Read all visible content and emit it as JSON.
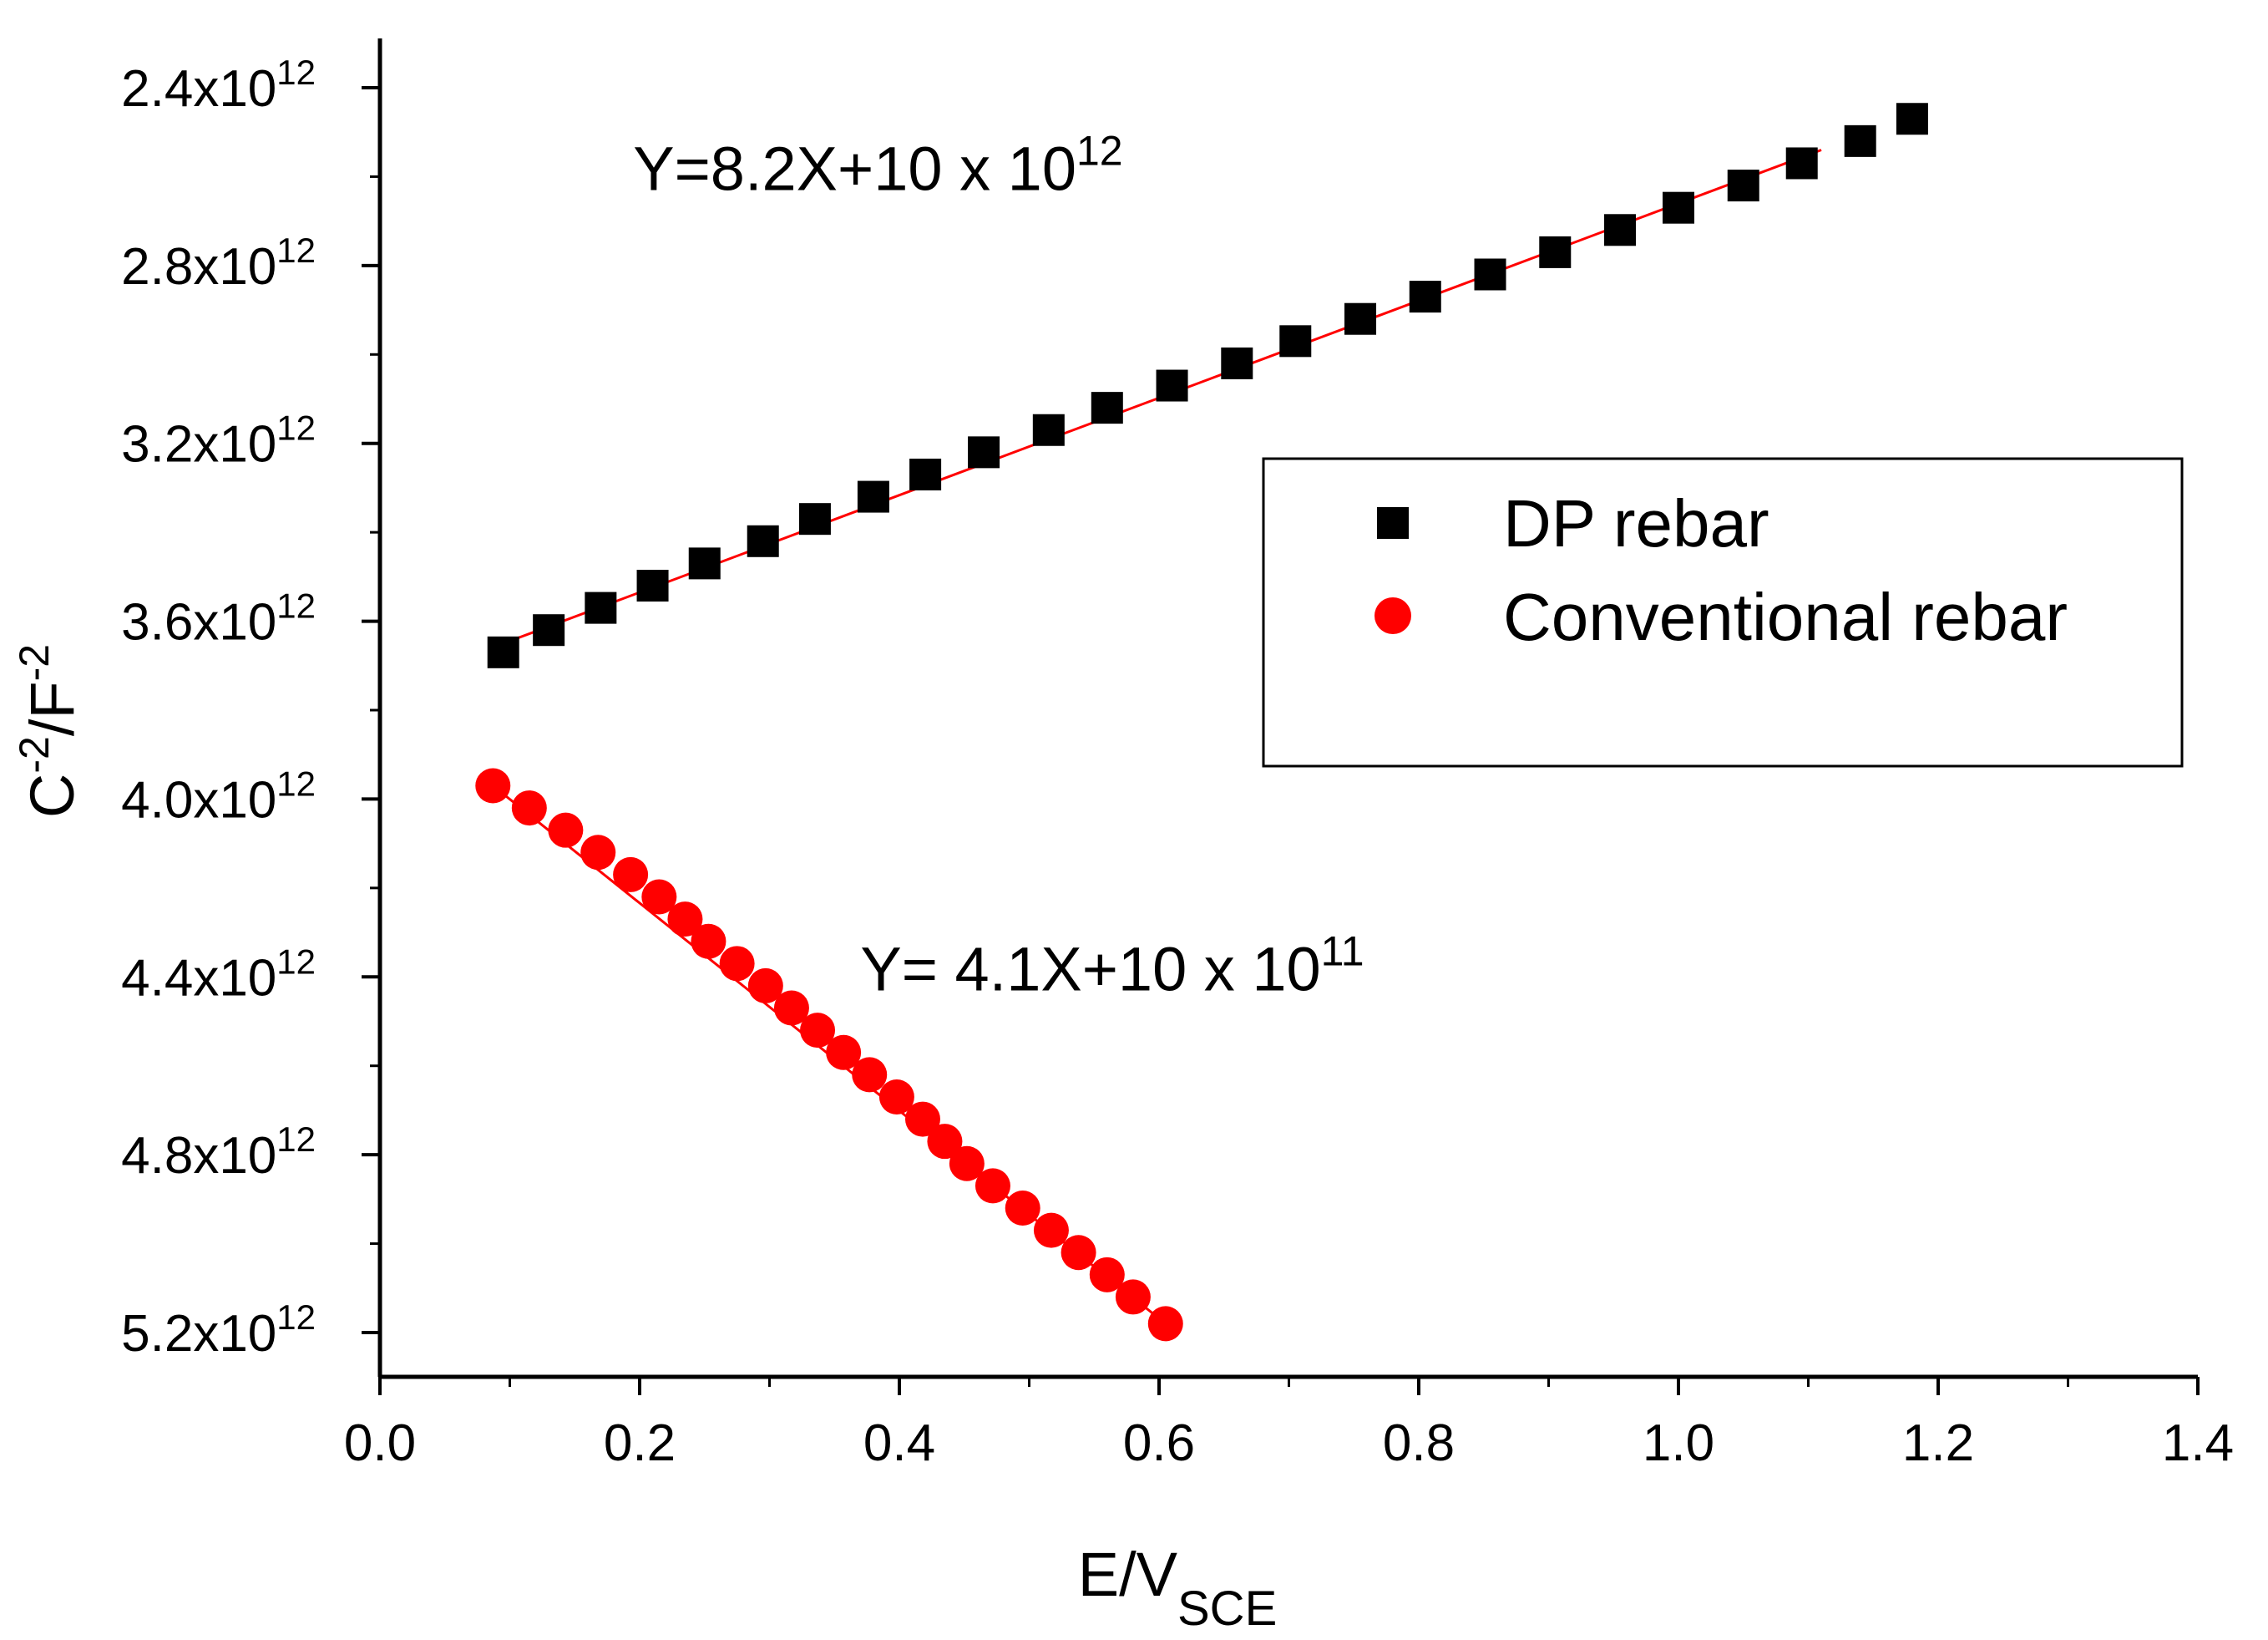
{
  "chart_data": {
    "type": "scatter",
    "title": "",
    "xlabel": {
      "main": "E/V",
      "sub": "SCE"
    },
    "ylabel": {
      "base": "C",
      "exp1": "-2",
      "mid": "/F",
      "exp2": "-2"
    },
    "xlim": [
      0.0,
      1.4
    ],
    "ylim": [
      2340000000000.0,
      5300000000000.0
    ],
    "y_inverted": true,
    "grid": false,
    "x_ticks": [
      {
        "value": 0.0,
        "label": "0.0"
      },
      {
        "value": 0.2,
        "label": "0.2"
      },
      {
        "value": 0.4,
        "label": "0.4"
      },
      {
        "value": 0.6,
        "label": "0.6"
      },
      {
        "value": 0.8,
        "label": "0.8"
      },
      {
        "value": 1.0,
        "label": "1.0"
      },
      {
        "value": 1.2,
        "label": "1.2"
      },
      {
        "value": 1.4,
        "label": "1.4"
      }
    ],
    "x_minor_step": 0.1,
    "y_ticks": [
      {
        "value": 2400000000000.0,
        "label": "2.4x10",
        "exp": "12"
      },
      {
        "value": 2800000000000.0,
        "label": "2.8x10",
        "exp": "12"
      },
      {
        "value": 3200000000000.0,
        "label": "3.2x10",
        "exp": "12"
      },
      {
        "value": 3600000000000.0,
        "label": "3.6x10",
        "exp": "12"
      },
      {
        "value": 4000000000000.0,
        "label": "4.0x10",
        "exp": "12"
      },
      {
        "value": 4400000000000.0,
        "label": "4.4x10",
        "exp": "12"
      },
      {
        "value": 4800000000000.0,
        "label": "4.8x10",
        "exp": "12"
      },
      {
        "value": 5200000000000.0,
        "label": "5.2x10",
        "exp": "12"
      }
    ],
    "y_minor_step": 200000000000.0,
    "series": [
      {
        "name": "DP rebar",
        "marker": "square",
        "color": "#000000",
        "x": [
          0.095,
          0.13,
          0.17,
          0.21,
          0.25,
          0.295,
          0.335,
          0.38,
          0.42,
          0.465,
          0.515,
          0.56,
          0.61,
          0.66,
          0.705,
          0.755,
          0.805,
          0.855,
          0.905,
          0.955,
          1.0,
          1.05,
          1.095,
          1.14,
          1.18
        ],
        "y": [
          3670000000000.0,
          3620000000000.0,
          3570000000000.0,
          3520000000000.0,
          3470000000000.0,
          3420000000000.0,
          3370000000000.0,
          3320000000000.0,
          3270000000000.0,
          3220000000000.0,
          3170000000000.0,
          3120000000000.0,
          3070000000000.0,
          3020000000000.0,
          2970000000000.0,
          2920000000000.0,
          2870000000000.0,
          2820000000000.0,
          2770000000000.0,
          2720000000000.0,
          2670000000000.0,
          2620000000000.0,
          2570000000000.0,
          2520000000000.0,
          2470000000000.0
        ],
        "fit": {
          "x": [
            0.095,
            1.11
          ],
          "y": [
            3650000000000.0,
            2540000000000.0
          ],
          "color": "#ff0000"
        }
      },
      {
        "name": "Conventional rebar",
        "marker": "circle",
        "color": "#ff0000",
        "x": [
          0.087,
          0.115,
          0.143,
          0.168,
          0.193,
          0.215,
          0.235,
          0.253,
          0.275,
          0.297,
          0.317,
          0.337,
          0.357,
          0.377,
          0.398,
          0.418,
          0.435,
          0.452,
          0.472,
          0.495,
          0.517,
          0.538,
          0.56,
          0.58,
          0.605
        ],
        "y": [
          3970000000000.0,
          4020000000000.0,
          4070000000000.0,
          4120000000000.0,
          4170000000000.0,
          4220000000000.0,
          4270000000000.0,
          4320000000000.0,
          4370000000000.0,
          4420000000000.0,
          4470000000000.0,
          4520000000000.0,
          4570000000000.0,
          4620000000000.0,
          4670000000000.0,
          4720000000000.0,
          4770000000000.0,
          4820000000000.0,
          4870000000000.0,
          4920000000000.0,
          4970000000000.0,
          5020000000000.0,
          5070000000000.0,
          5120000000000.0,
          5180000000000.0
        ],
        "fit": {
          "x": [
            0.087,
            0.605
          ],
          "y": [
            3970000000000.0,
            5180000000000.0
          ],
          "color": "#ff0000"
        }
      }
    ],
    "annotations": [
      {
        "text": "Y=8.2X+10 x 10",
        "exp": "12",
        "x": 0.195,
        "y": 2630000000000.0
      },
      {
        "text": "Y= 4.1X+10 x 10",
        "exp": "11",
        "x": 0.37,
        "y": 4430000000000.0
      }
    ],
    "legend": {
      "position": "right",
      "entries": [
        {
          "label": "DP rebar",
          "marker": "square",
          "color": "#000000"
        },
        {
          "label": "Conventional rebar",
          "marker": "circle",
          "color": "#ff0000"
        }
      ]
    }
  }
}
